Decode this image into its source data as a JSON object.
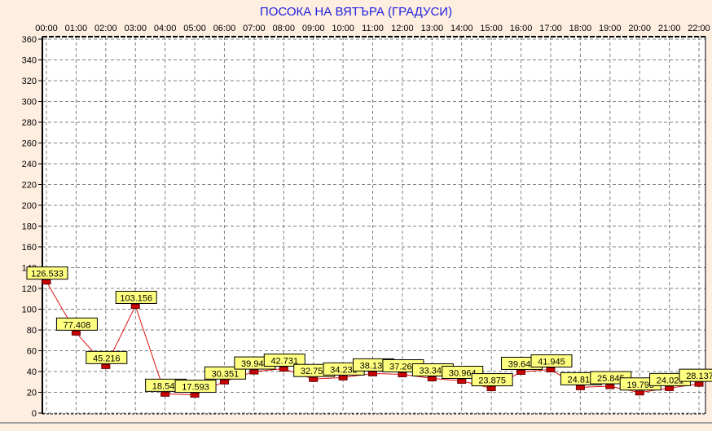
{
  "chart_data": {
    "type": "line",
    "title": "ПОСОКА НА ВЯТЪРА    (ГРАДУСИ)",
    "xlabel": "",
    "ylabel": "",
    "x": [
      "00:00",
      "01:00",
      "02:00",
      "03:00",
      "04:00",
      "05:00",
      "06:00",
      "07:00",
      "08:00",
      "09:00",
      "10:00",
      "11:00",
      "12:00",
      "13:00",
      "14:00",
      "15:00",
      "16:00",
      "17:00",
      "18:00",
      "19:00",
      "20:00",
      "21:00",
      "22:00"
    ],
    "values": [
      126.533,
      77.408,
      45.216,
      103.156,
      18.547,
      17.593,
      30.351,
      39.944,
      42.731,
      32.757,
      34.232,
      38.138,
      37.269,
      33.343,
      30.964,
      23.875,
      39.646,
      41.945,
      24.818,
      25.845,
      19.795,
      24.021,
      28.137
    ],
    "ylim": [
      0,
      360
    ],
    "yticks": [
      0,
      20,
      40,
      60,
      80,
      100,
      120,
      140,
      160,
      180,
      200,
      220,
      240,
      260,
      280,
      300,
      320,
      340,
      360
    ],
    "grid": true,
    "x_axis_position": "top",
    "data_labels": true,
    "colors": {
      "line": "#e01010",
      "marker": "#cc0000",
      "label_bg": "#ffff80",
      "title": "#2020e0",
      "background": "#fdeee0",
      "plot_bg": "#ffffff"
    }
  }
}
